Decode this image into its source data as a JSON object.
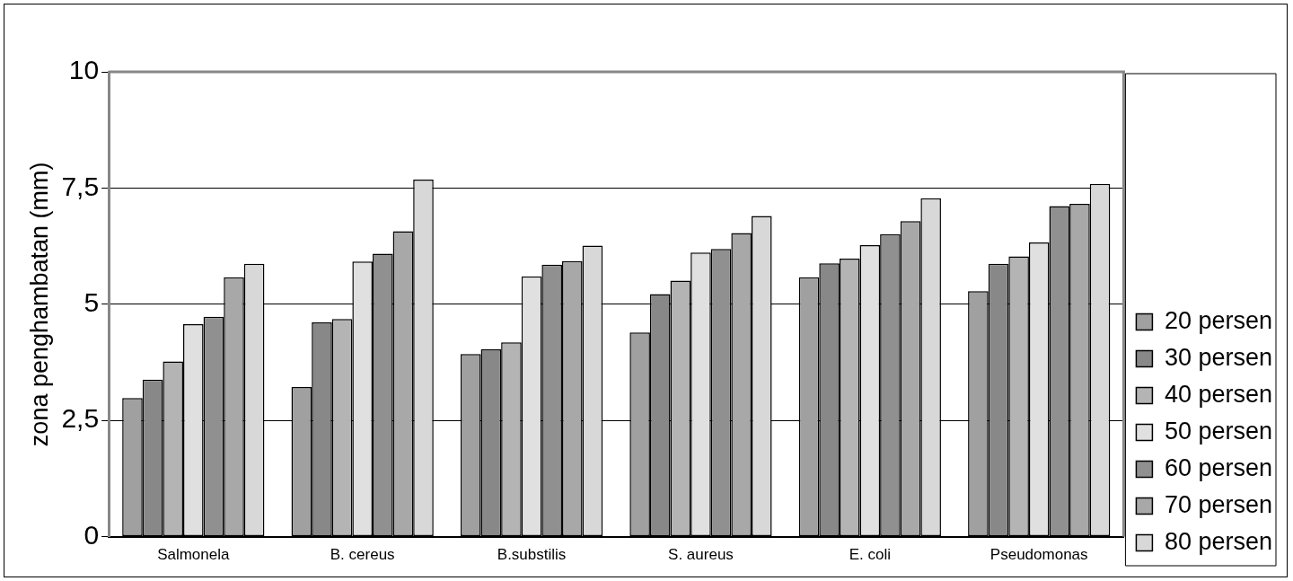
{
  "chart_data": {
    "type": "bar",
    "ylabel": "zona penghambatan (mm)",
    "categories": [
      "Salmonela",
      "B. cereus",
      "B.substilis",
      "S. aureus",
      "E. coli",
      "Pseudomonas"
    ],
    "series": [
      {
        "name": "20 persen",
        "color": "#a0a0a0",
        "values": [
          2.98,
          3.22,
          3.93,
          4.39,
          5.58,
          5.28
        ]
      },
      {
        "name": "30 persen",
        "color": "#888888",
        "values": [
          3.38,
          4.61,
          4.03,
          5.22,
          5.88,
          5.87
        ]
      },
      {
        "name": "40 persen",
        "color": "#b4b4b4",
        "values": [
          3.77,
          4.68,
          4.18,
          5.51,
          5.98,
          6.03
        ]
      },
      {
        "name": "50 persen",
        "color": "#e0e0e0",
        "values": [
          4.57,
          5.92,
          5.6,
          6.11,
          6.27,
          6.33
        ]
      },
      {
        "name": "60 persen",
        "color": "#909090",
        "values": [
          4.73,
          6.09,
          5.85,
          6.19,
          6.51,
          7.11
        ]
      },
      {
        "name": "70 persen",
        "color": "#a8a8a8",
        "values": [
          5.58,
          6.57,
          5.93,
          6.53,
          6.79,
          7.16
        ]
      },
      {
        "name": "80 persen",
        "color": "#d8d8d8",
        "values": [
          5.87,
          7.68,
          6.26,
          6.9,
          7.28,
          7.59
        ]
      }
    ],
    "ylim": [
      0,
      10
    ],
    "yticks": [
      0,
      {
        "value": 2.5,
        "label": "2,5"
      },
      5,
      {
        "value": 7.5,
        "label": "7,5"
      },
      10
    ],
    "grid": "y",
    "legend": "right"
  }
}
